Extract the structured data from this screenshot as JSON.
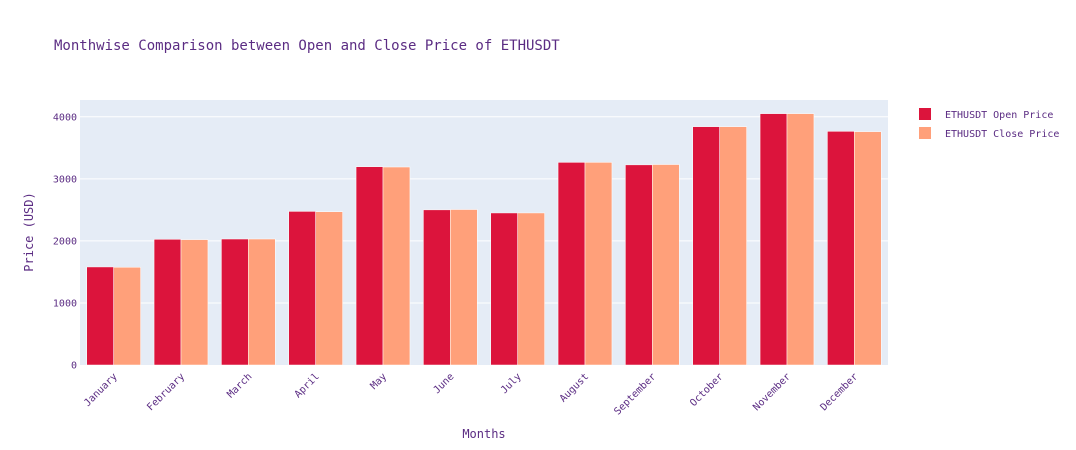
{
  "chart_data": {
    "type": "bar",
    "title": "Monthwise Comparison between Open and Close Price of ETHUSDT",
    "xlabel": "Months",
    "ylabel": "Price (USD)",
    "categories": [
      "January",
      "February",
      "March",
      "April",
      "May",
      "June",
      "July",
      "August",
      "September",
      "October",
      "November",
      "December"
    ],
    "series": [
      {
        "name": "ETHUSDT Open Price",
        "color": "#dc143c",
        "values": [
          1580,
          2025,
          2030,
          2475,
          3195,
          2500,
          2450,
          3265,
          3225,
          3840,
          4050,
          3765
        ]
      },
      {
        "name": "ETHUSDT Close Price",
        "color": "#ffa07a",
        "values": [
          1575,
          2020,
          2030,
          2470,
          3190,
          2505,
          2450,
          3265,
          3230,
          3840,
          4050,
          3760
        ]
      }
    ],
    "ylim": [
      0,
      4270
    ],
    "yticks": [
      0,
      1000,
      2000,
      3000,
      4000
    ],
    "grid": true,
    "legend_position": "top-right",
    "plot_background": "#e5ecf6",
    "text_color": "#5b2c83"
  }
}
